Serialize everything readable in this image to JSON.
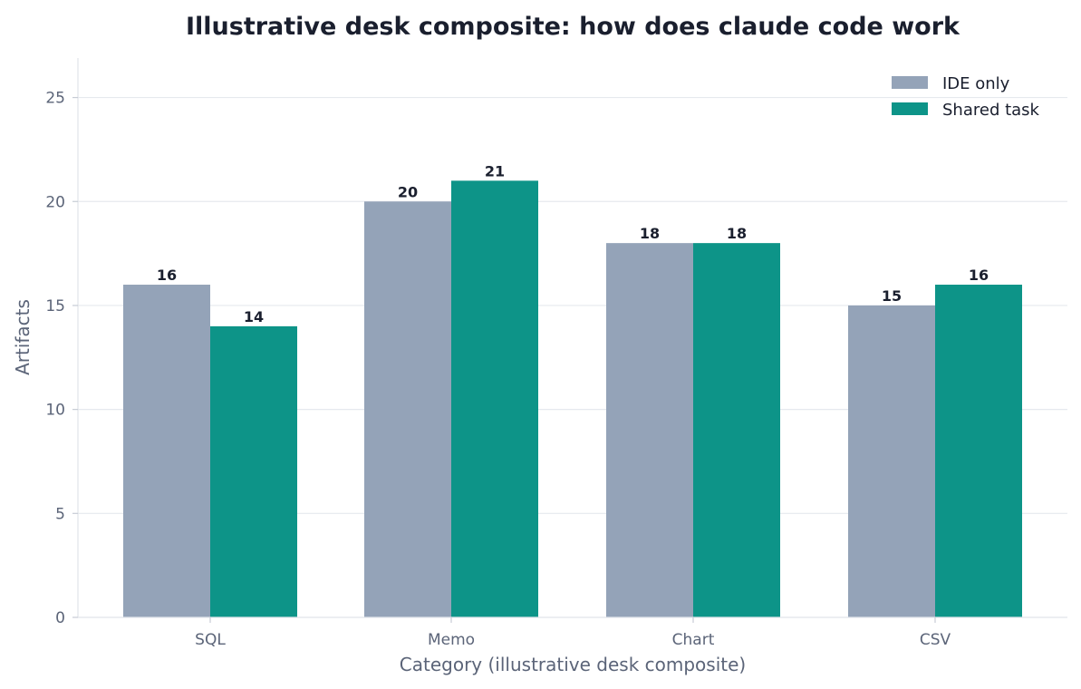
{
  "chart_data": {
    "type": "bar",
    "title": "Illustrative desk composite: how does claude code work",
    "xlabel": "Category (illustrative desk composite)",
    "ylabel": "Artifacts",
    "categories": [
      "SQL",
      "Memo",
      "Chart",
      "CSV"
    ],
    "series": [
      {
        "name": "IDE only",
        "values": [
          16,
          20,
          18,
          15
        ],
        "color": "#94a3b8"
      },
      {
        "name": "Shared task",
        "values": [
          14,
          21,
          18,
          16
        ],
        "color": "#0d9488"
      }
    ],
    "ylim": [
      0,
      26.9
    ],
    "yticks": [
      0,
      5,
      10,
      15,
      20,
      25
    ],
    "grid": true,
    "legend_position": "top-right"
  }
}
